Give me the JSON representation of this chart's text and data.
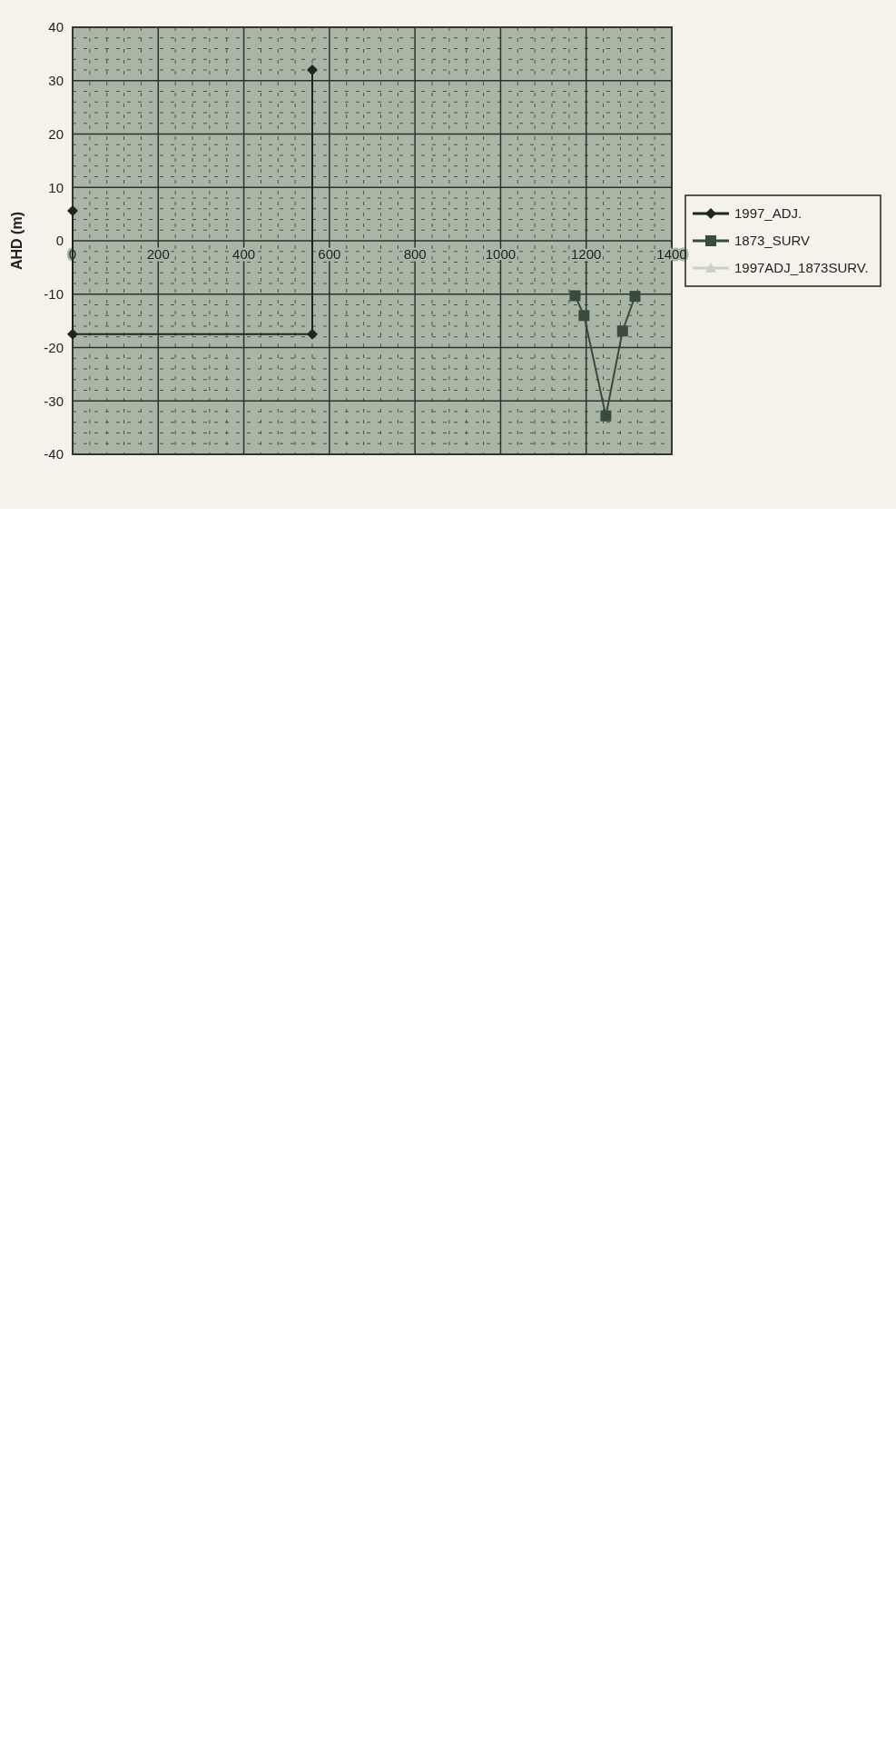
{
  "chart_data": {
    "type": "line",
    "ylabel": "AHD (m)",
    "xlim": [
      0,
      1400
    ],
    "xticks": [
      0,
      200,
      400,
      600,
      800,
      1000,
      1200,
      1400
    ],
    "ylim": [
      -40,
      40
    ],
    "yticks": [
      -40,
      -30,
      -20,
      -10,
      0,
      10,
      20,
      30,
      40
    ],
    "grid": true,
    "legend": "right",
    "series": [
      {
        "name": "1997_ADJ.",
        "color": "#1e261e",
        "marker": "diamond",
        "x": [
          0,
          0,
          560,
          560
        ],
        "values": [
          5.6,
          -17.5,
          -17.5,
          32
        ]
      },
      {
        "name": "1873_SURV",
        "color": "#3a4a3c",
        "marker": "square",
        "x": [
          1174,
          1195,
          1246,
          1285,
          1314
        ],
        "values": [
          -10.3,
          -14,
          -32.8,
          -16.9,
          -10.4
        ]
      },
      {
        "name": "1997ADJ_1873SURV.",
        "color": "#c9d1c6",
        "marker": "triangle"
      }
    ]
  }
}
